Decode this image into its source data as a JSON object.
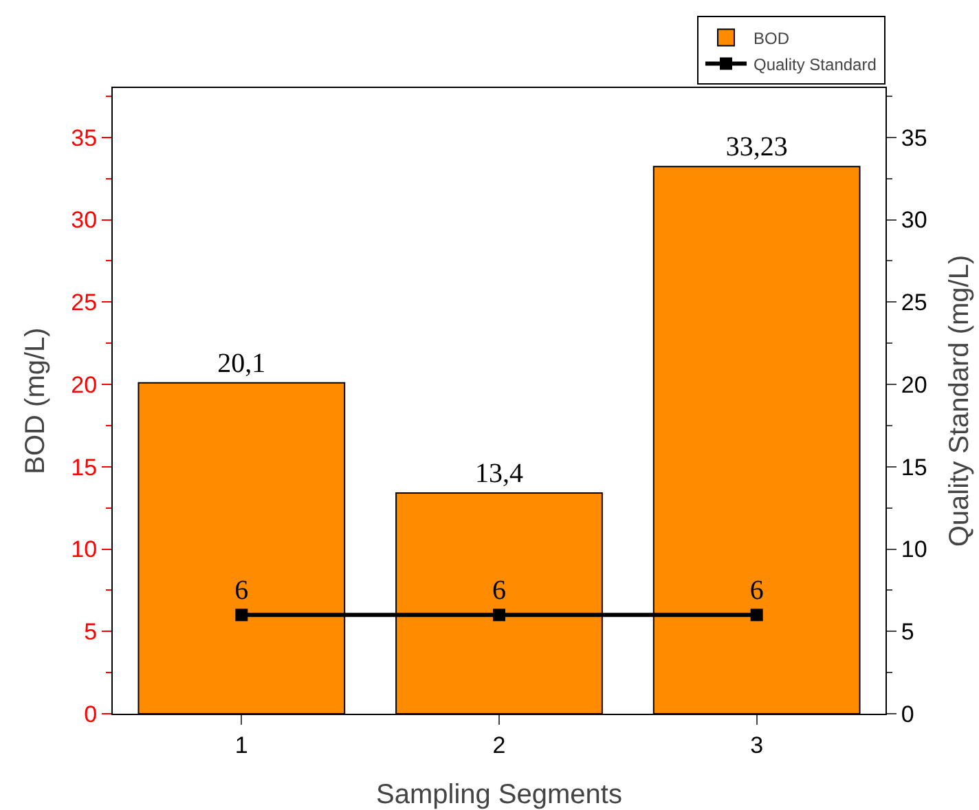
{
  "chart_data": {
    "type": "bar",
    "xlabel": "Sampling Segments",
    "ylabel": "BOD (mg/L)",
    "y2label": "Quality Standard (mg/L)",
    "categories": [
      "1",
      "2",
      "3"
    ],
    "series": [
      {
        "name": "BOD",
        "color": "#ff8c00",
        "values": [
          20.1,
          13.4,
          33.23
        ],
        "value_labels": [
          "20,1",
          "13,4",
          "33,23"
        ]
      },
      {
        "name": "Quality Standard",
        "type": "line",
        "axis": "y2",
        "color": "#000000",
        "marker": "square",
        "line_style": "solid",
        "values": [
          6,
          6,
          6
        ],
        "value_labels": [
          "6",
          "6",
          "6"
        ]
      }
    ],
    "ylim": [
      0,
      38
    ],
    "yticks": [
      0,
      5,
      10,
      15,
      20,
      25,
      30,
      35
    ],
    "y2lim": [
      0,
      38
    ],
    "y2ticks": [
      0,
      5,
      10,
      15,
      20,
      25,
      30,
      35
    ],
    "grid": false,
    "legend": "top right"
  }
}
